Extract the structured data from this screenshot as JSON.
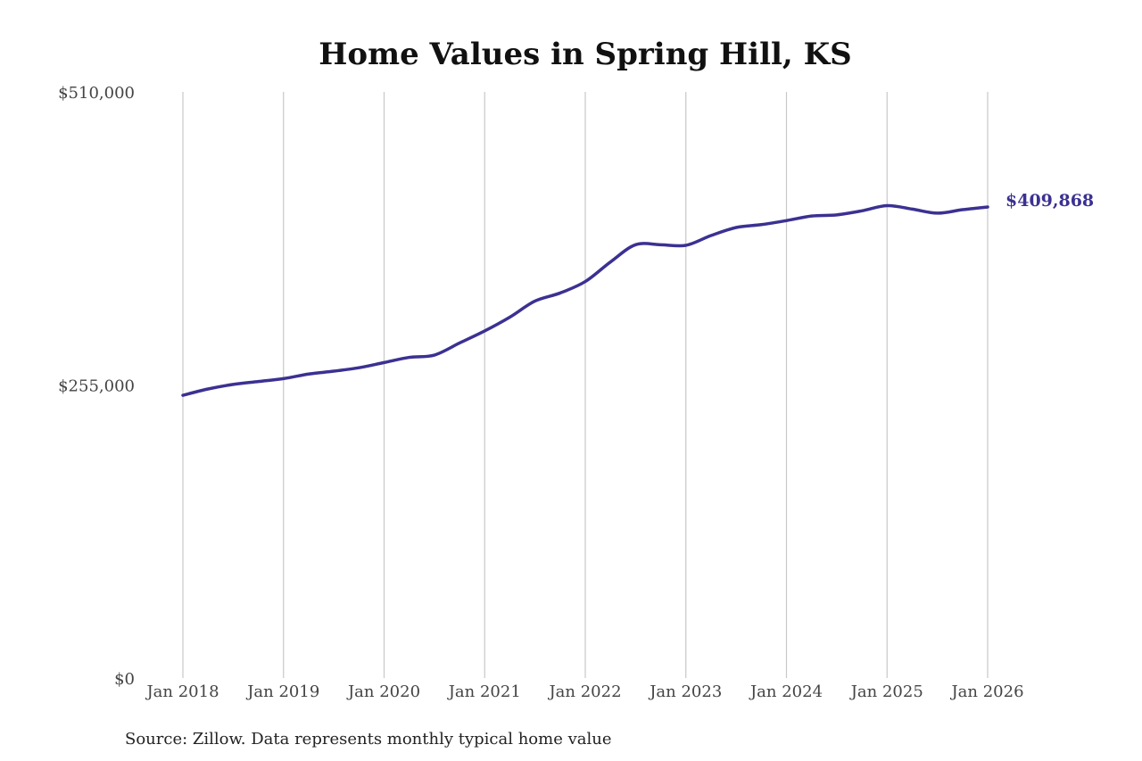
{
  "chart_data": {
    "type": "line",
    "title": "Home Values in Spring Hill, KS",
    "source": "Source: Zillow. Data represents monthly typical home value",
    "xlabel": "",
    "ylabel": "",
    "ylim": [
      0,
      510000
    ],
    "y_ticks": [
      {
        "value": 0,
        "label": "$0"
      },
      {
        "value": 255000,
        "label": "$255,000"
      },
      {
        "value": 510000,
        "label": "$510,000"
      }
    ],
    "x_ticks": [
      {
        "value": "2018-01",
        "label": "Jan 2018"
      },
      {
        "value": "2019-01",
        "label": "Jan 2019"
      },
      {
        "value": "2020-01",
        "label": "Jan 2020"
      },
      {
        "value": "2021-01",
        "label": "Jan 2021"
      },
      {
        "value": "2022-01",
        "label": "Jan 2022"
      },
      {
        "value": "2023-01",
        "label": "Jan 2023"
      },
      {
        "value": "2024-01",
        "label": "Jan 2024"
      },
      {
        "value": "2025-01",
        "label": "Jan 2025"
      },
      {
        "value": "2026-01",
        "label": "Jan 2026"
      }
    ],
    "xlim": [
      "2018-01",
      "2026-01"
    ],
    "grid": "vertical",
    "line_color": "#3b3192",
    "end_label": "$409,868",
    "series": [
      {
        "x": [
          "2018-01",
          "2018-04",
          "2018-07",
          "2018-10",
          "2019-01",
          "2019-04",
          "2019-07",
          "2019-10",
          "2020-01",
          "2020-04",
          "2020-07",
          "2020-10",
          "2021-01",
          "2021-04",
          "2021-07",
          "2021-10",
          "2022-01",
          "2022-04",
          "2022-07",
          "2022-10",
          "2023-01",
          "2023-04",
          "2023-07",
          "2023-10",
          "2024-01",
          "2024-04",
          "2024-07",
          "2024-10",
          "2025-01",
          "2025-04",
          "2025-07",
          "2025-10",
          "2026-01"
        ],
        "values": [
          246000,
          251500,
          255500,
          258000,
          260500,
          264500,
          267000,
          270000,
          274500,
          279000,
          281000,
          291500,
          302000,
          314000,
          328000,
          335000,
          345000,
          362000,
          377000,
          377000,
          376500,
          385000,
          392000,
          394500,
          398000,
          402000,
          403000,
          406500,
          411000,
          408000,
          404500,
          407500,
          409868
        ]
      }
    ]
  }
}
